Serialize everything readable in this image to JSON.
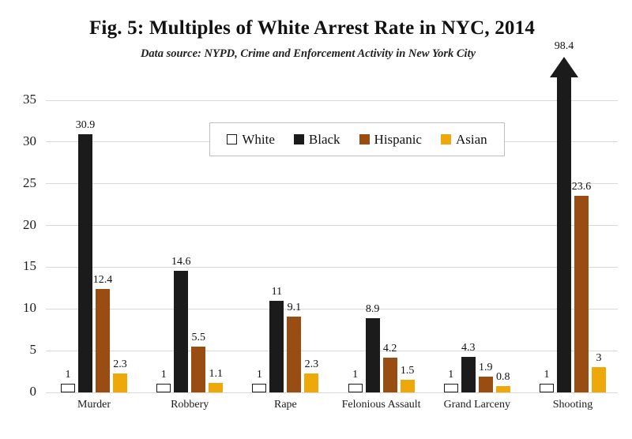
{
  "title": "Fig. 5: Multiples of White Arrest Rate in NYC, 2014",
  "subtitle": "Data source: NYPD, Crime and Enforcement Activity in New York City",
  "chart_data": {
    "type": "bar",
    "title": "Fig. 5: Multiples of White Arrest Rate in NYC, 2014",
    "subtitle": "Data source: NYPD, Crime and Enforcement Activity in New York City",
    "categories": [
      "Murder",
      "Robbery",
      "Rape",
      "Felonious Assault",
      "Grand Larceny",
      "Shooting"
    ],
    "series": [
      {
        "name": "White",
        "color": "#ffffff",
        "border": "#1b1b1b",
        "values": [
          1,
          1,
          1,
          1,
          1,
          1
        ],
        "labels": [
          "1",
          "1",
          "1",
          "1",
          "1",
          "1"
        ]
      },
      {
        "name": "Black",
        "color": "#1b1b1b",
        "values": [
          30.9,
          14.6,
          11,
          8.9,
          4.3,
          98.4
        ],
        "labels": [
          "30.9",
          "14.6",
          "11",
          "8.9",
          "4.3",
          "98.4"
        ]
      },
      {
        "name": "Hispanic",
        "color": "#9a4d13",
        "values": [
          12.4,
          5.5,
          9.1,
          4.2,
          1.9,
          23.6
        ],
        "labels": [
          "12.4",
          "5.5",
          "9.1",
          "4.2",
          "1.9",
          "23.6"
        ]
      },
      {
        "name": "Asian",
        "color": "#eea80a",
        "values": [
          2.3,
          1.1,
          2.3,
          1.5,
          0.8,
          3
        ],
        "labels": [
          "2.3",
          "1.1",
          "2.3",
          "1.5",
          "0.8",
          "3"
        ]
      }
    ],
    "y_ticks": [
      0,
      5,
      10,
      15,
      20,
      25,
      30,
      35
    ],
    "ylim": [
      0,
      35
    ],
    "xlabel": "",
    "ylabel": "",
    "grid": true,
    "legend_position": "inset-top-center",
    "annotations": [
      {
        "type": "overflow-arrow",
        "category": "Shooting",
        "series": "Black",
        "value": 98.4,
        "label": "98.4"
      }
    ],
    "gridline_color": "#d9d9d9",
    "background_color": "#ffffff"
  }
}
